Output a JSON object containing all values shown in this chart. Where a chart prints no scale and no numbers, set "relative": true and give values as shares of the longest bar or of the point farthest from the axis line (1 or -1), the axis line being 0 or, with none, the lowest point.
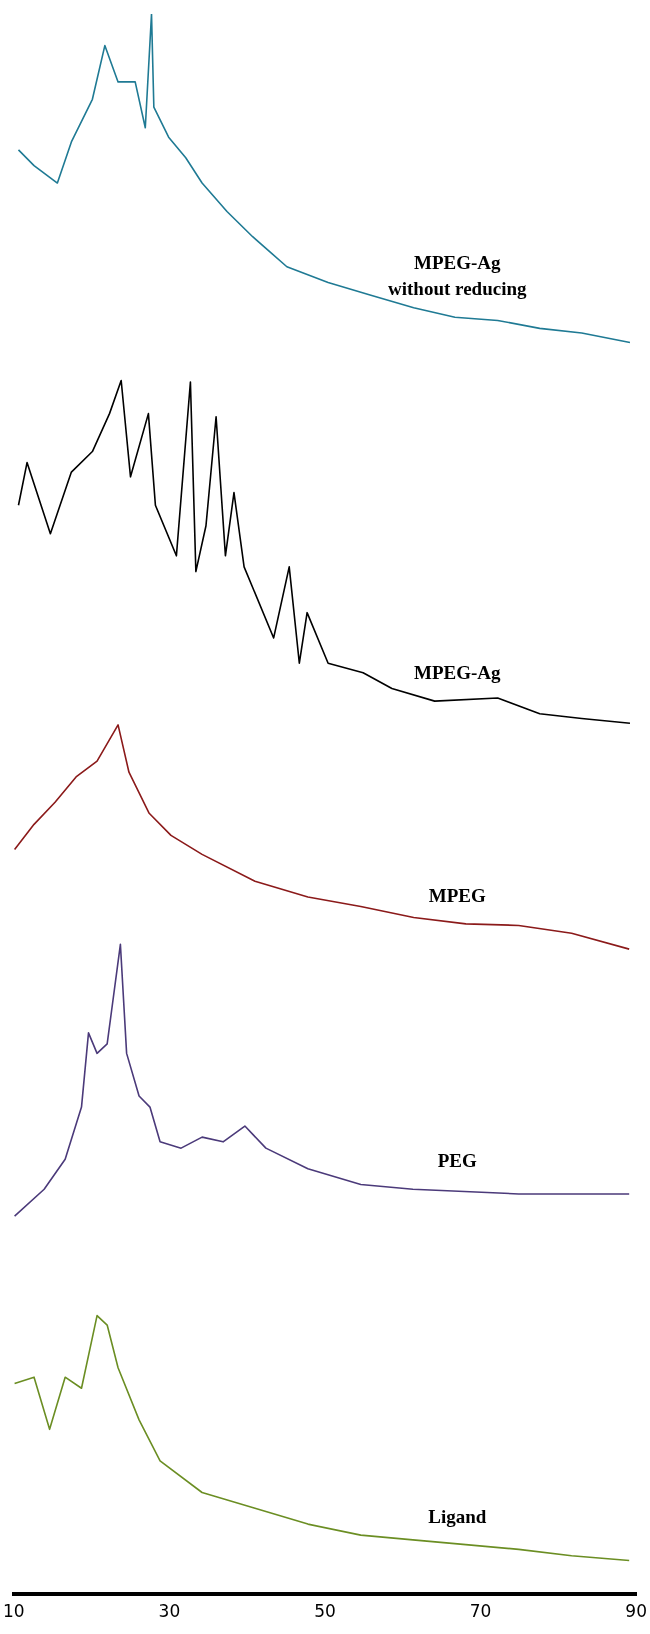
{
  "chart_data": {
    "type": "line",
    "relative": true,
    "xlim": [
      10,
      90
    ],
    "xticks": [
      10,
      30,
      50,
      70,
      90
    ],
    "grid": false,
    "legend": false,
    "marker": "none",
    "line_style": "solid",
    "series": [
      {
        "name": "MPEG-Ag without reducing",
        "color": "#1f7a94",
        "x": [
          10.6,
          12.6,
          15.6,
          17.4,
          20.1,
          21.7,
          23.4,
          25.6,
          26.9,
          27.7,
          28.0,
          29.9,
          32.1,
          34.2,
          37.4,
          40.7,
          45.1,
          50.4,
          55.9,
          61.4,
          66.7,
          72.2,
          77.6,
          83.0,
          89.2
        ],
        "values": [
          0.914,
          0.904,
          0.893,
          0.919,
          0.946,
          0.98,
          0.957,
          0.957,
          0.928,
          1.0,
          0.941,
          0.922,
          0.909,
          0.893,
          0.875,
          0.859,
          0.84,
          0.83,
          0.822,
          0.814,
          0.808,
          0.806,
          0.801,
          0.798,
          0.792
        ]
      },
      {
        "name": "MPEG-Ag",
        "color": "#000000",
        "x": [
          10.6,
          11.7,
          14.7,
          17.4,
          20.1,
          22.3,
          23.8,
          25.0,
          27.3,
          28.2,
          30.9,
          32.7,
          33.4,
          34.7,
          36.0,
          37.2,
          38.3,
          39.6,
          43.4,
          45.4,
          46.7,
          47.7,
          50.4,
          54.9,
          58.6,
          64.1,
          72.2,
          77.6,
          83.0,
          89.2
        ],
        "values": [
          0.689,
          0.716,
          0.671,
          0.71,
          0.723,
          0.747,
          0.768,
          0.707,
          0.747,
          0.689,
          0.657,
          0.767,
          0.647,
          0.676,
          0.745,
          0.657,
          0.697,
          0.65,
          0.605,
          0.65,
          0.589,
          0.621,
          0.589,
          0.583,
          0.573,
          0.565,
          0.567,
          0.557,
          0.554,
          0.551
        ]
      },
      {
        "name": "MPEG",
        "color": "#8b1a1a",
        "x": [
          10.1,
          12.6,
          15.3,
          18.0,
          20.7,
          23.4,
          24.8,
          27.4,
          30.2,
          34.2,
          41.0,
          47.8,
          54.6,
          61.4,
          68.1,
          74.9,
          81.7,
          89.1
        ],
        "values": [
          0.471,
          0.487,
          0.501,
          0.517,
          0.527,
          0.55,
          0.52,
          0.494,
          0.48,
          0.468,
          0.451,
          0.441,
          0.435,
          0.428,
          0.424,
          0.423,
          0.418,
          0.408
        ]
      },
      {
        "name": "PEG",
        "color": "#4b3a7a",
        "x": [
          10.1,
          13.9,
          16.6,
          18.7,
          19.6,
          20.7,
          22.0,
          23.7,
          24.5,
          26.1,
          27.5,
          28.8,
          31.5,
          34.2,
          36.9,
          39.7,
          42.4,
          47.8,
          54.6,
          61.3,
          74.9,
          89.1
        ],
        "values": [
          0.239,
          0.256,
          0.275,
          0.308,
          0.355,
          0.342,
          0.348,
          0.411,
          0.342,
          0.315,
          0.308,
          0.286,
          0.282,
          0.289,
          0.286,
          0.296,
          0.282,
          0.269,
          0.259,
          0.256,
          0.253,
          0.253
        ]
      },
      {
        "name": "Ligand",
        "color": "#6b8e23",
        "x": [
          10.1,
          12.6,
          14.6,
          16.6,
          18.7,
          20.7,
          22.0,
          23.4,
          26.1,
          28.8,
          34.2,
          41.0,
          47.8,
          54.6,
          61.3,
          68.1,
          74.9,
          81.7,
          89.1
        ],
        "values": [
          0.133,
          0.137,
          0.104,
          0.137,
          0.13,
          0.176,
          0.17,
          0.143,
          0.11,
          0.084,
          0.064,
          0.054,
          0.044,
          0.037,
          0.034,
          0.031,
          0.028,
          0.024,
          0.021
        ]
      }
    ]
  }
}
